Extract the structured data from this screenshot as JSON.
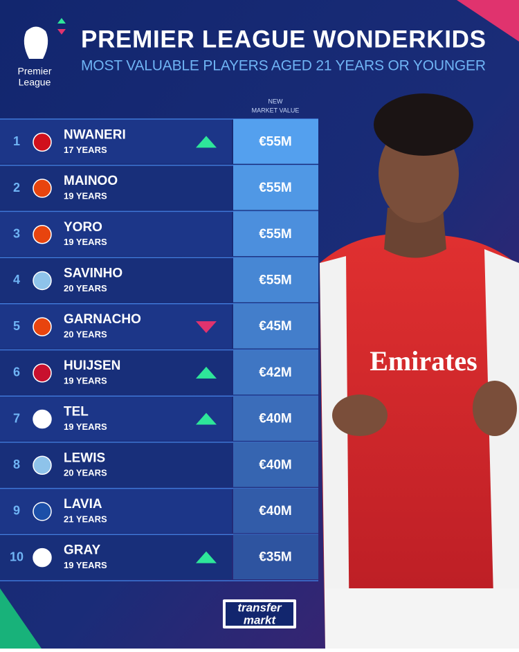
{
  "header": {
    "title": "PREMIER LEAGUE WONDERKIDS",
    "subtitle": "MOST VALUABLE PLAYERS AGED 21 YEARS OR YOUNGER",
    "logo": [
      "Premier",
      "League"
    ]
  },
  "table": {
    "column_header": [
      "NEW",
      "MARKET VALUE"
    ],
    "rows": [
      {
        "rank": "1",
        "name": "NWANERI",
        "age": "17 YEARS",
        "value": "€55M",
        "trend": "up",
        "club_color": "#d0101c"
      },
      {
        "rank": "2",
        "name": "MAINOO",
        "age": "19 YEARS",
        "value": "€55M",
        "club_color": "#e8440e"
      },
      {
        "rank": "3",
        "name": "YORO",
        "age": "19 YEARS",
        "value": "€55M",
        "club_color": "#e8440e"
      },
      {
        "rank": "4",
        "name": "SAVINHO",
        "age": "20 YEARS",
        "value": "€55M",
        "club_color": "#8ec3ea"
      },
      {
        "rank": "5",
        "name": "GARNACHO",
        "age": "20 YEARS",
        "value": "€45M",
        "trend": "down",
        "club_color": "#e8440e"
      },
      {
        "rank": "6",
        "name": "HUIJSEN",
        "age": "19 YEARS",
        "value": "€42M",
        "trend": "up",
        "club_color": "#c8102e"
      },
      {
        "rank": "7",
        "name": "TEL",
        "age": "19 YEARS",
        "value": "€40M",
        "trend": "up",
        "club_color": "#ffffff"
      },
      {
        "rank": "8",
        "name": "LEWIS",
        "age": "20 YEARS",
        "value": "€40M",
        "club_color": "#8ec3ea"
      },
      {
        "rank": "9",
        "name": "LAVIA",
        "age": "21 YEARS",
        "value": "€40M",
        "club_color": "#1c4fa8"
      },
      {
        "rank": "10",
        "name": "GRAY",
        "age": "19 YEARS",
        "value": "€35M",
        "trend": "up",
        "club_color": "#ffffff"
      }
    ]
  },
  "footer": {
    "logo": [
      "transfer",
      "markt"
    ]
  }
}
